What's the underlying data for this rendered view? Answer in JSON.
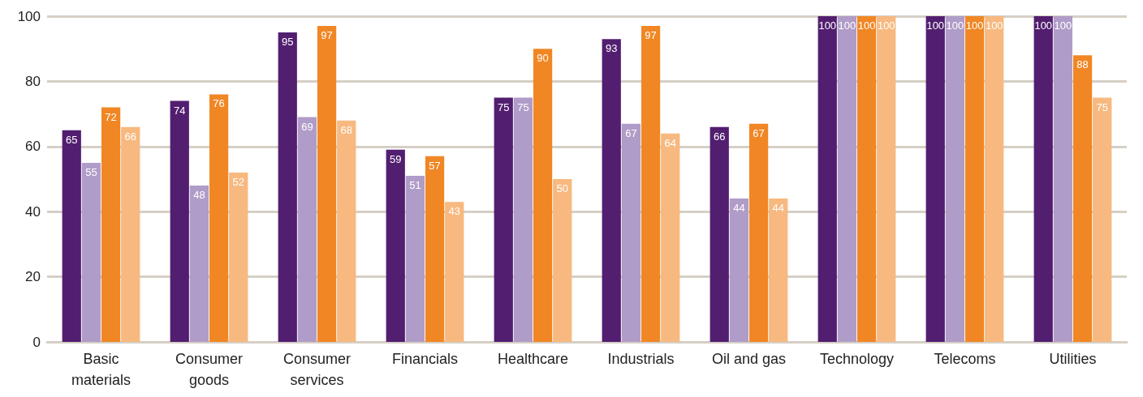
{
  "chart_data": {
    "type": "bar",
    "categories": [
      "Basic\nmaterials",
      "Consumer\ngoods",
      "Consumer\nservices",
      "Financials",
      "Healthcare",
      "Industrials",
      "Oil and gas",
      "Technology",
      "Telecoms",
      "Utilities"
    ],
    "series": [
      {
        "color": "#521e70",
        "values": [
          65,
          74,
          95,
          59,
          75,
          93,
          66,
          100,
          100,
          100
        ]
      },
      {
        "color": "#b09cc8",
        "values": [
          55,
          48,
          69,
          51,
          75,
          67,
          44,
          100,
          100,
          100
        ]
      },
      {
        "color": "#f08724",
        "values": [
          72,
          76,
          97,
          57,
          90,
          97,
          67,
          100,
          100,
          88
        ]
      },
      {
        "color": "#f7b97f",
        "values": [
          66,
          52,
          68,
          43,
          50,
          64,
          44,
          100,
          100,
          75
        ]
      }
    ],
    "ylim": [
      0,
      100
    ],
    "yticks": [
      0,
      20,
      40,
      60,
      80,
      100
    ],
    "grid": "y",
    "data_labels": true
  }
}
